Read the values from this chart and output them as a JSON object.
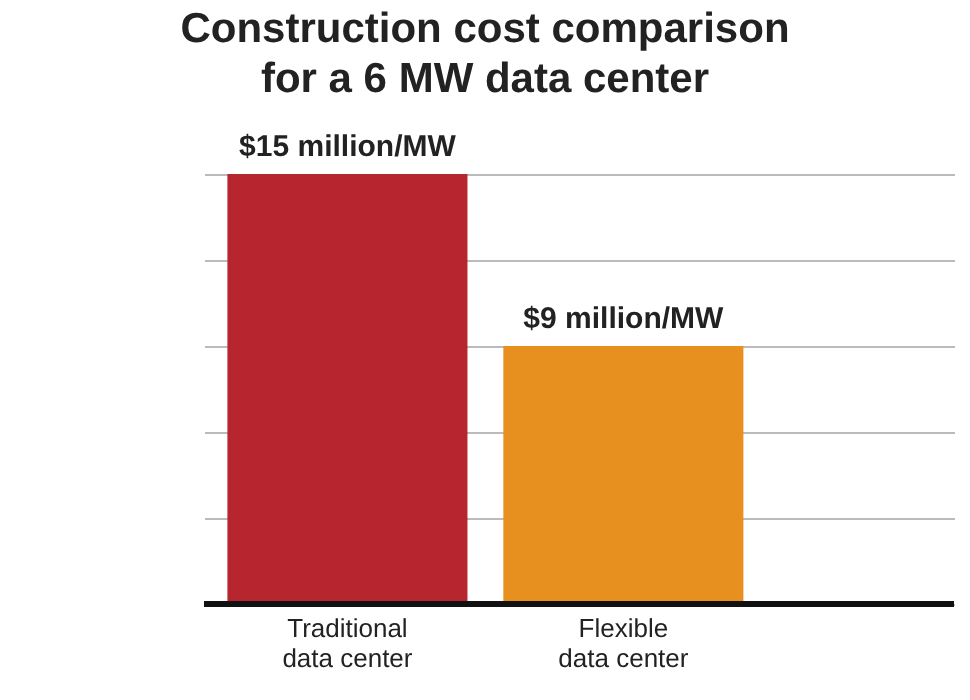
{
  "chart_data": {
    "type": "bar",
    "title": [
      "Construction cost comparison",
      "for a 6 MW data center"
    ],
    "categories": [
      "Traditional data center",
      "Flexible data center"
    ],
    "values": [
      15,
      9
    ],
    "colors": [
      "#b7262f",
      "#e8901f"
    ],
    "value_labels": [
      "$15 million/MW",
      "$9 million/MW"
    ],
    "ylim": [
      0,
      15
    ],
    "yticks": [
      {
        "value": 0,
        "label": null
      },
      {
        "value": 3,
        "label": null
      },
      {
        "value": 6,
        "label": null
      },
      {
        "value": 9,
        "label": null
      },
      {
        "value": 12,
        "label": null
      },
      {
        "value": 15,
        "label": null
      }
    ],
    "grid": "y",
    "tick_labels": "x"
  }
}
